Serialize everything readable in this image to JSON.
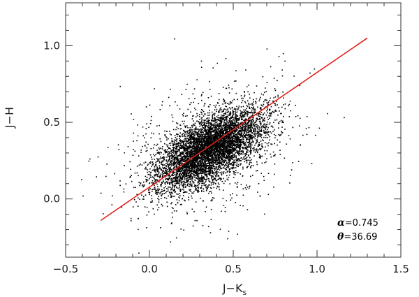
{
  "chart_data": {
    "type": "scatter",
    "xlabel_main": "J−K",
    "xlabel_sub": "s",
    "ylabel": "J−H",
    "xlim": [
      -0.5,
      1.5
    ],
    "ylim": [
      -0.38,
      1.28
    ],
    "x_ticks": [
      -0.5,
      0.0,
      0.5,
      1.0,
      1.5
    ],
    "x_tick_labels": [
      "−0.5",
      "0.0",
      "0.5",
      "1.0",
      "1.5"
    ],
    "y_ticks": [
      0.0,
      0.5,
      1.0
    ],
    "y_tick_labels": [
      "0.0",
      "0.5",
      "1.0"
    ],
    "x_minor_step": 0.1,
    "y_minor_step": 0.1,
    "grid": false,
    "point_color": "#000000",
    "fit_line": {
      "color": "#e0201a",
      "x": [
        -0.29,
        1.3
      ],
      "y": [
        -0.14,
        1.05
      ],
      "slope": 0.745,
      "angle_deg": 36.69
    },
    "point_cloud": {
      "n_points": 6500,
      "center_x": 0.36,
      "center_y": 0.33,
      "sd_along": 0.19,
      "sd_across": 0.085,
      "angle_deg": 36.69
    },
    "annotations": [
      {
        "symbol": "α",
        "value": "=0.745"
      },
      {
        "symbol": "θ",
        "value": "=36.69"
      }
    ]
  }
}
